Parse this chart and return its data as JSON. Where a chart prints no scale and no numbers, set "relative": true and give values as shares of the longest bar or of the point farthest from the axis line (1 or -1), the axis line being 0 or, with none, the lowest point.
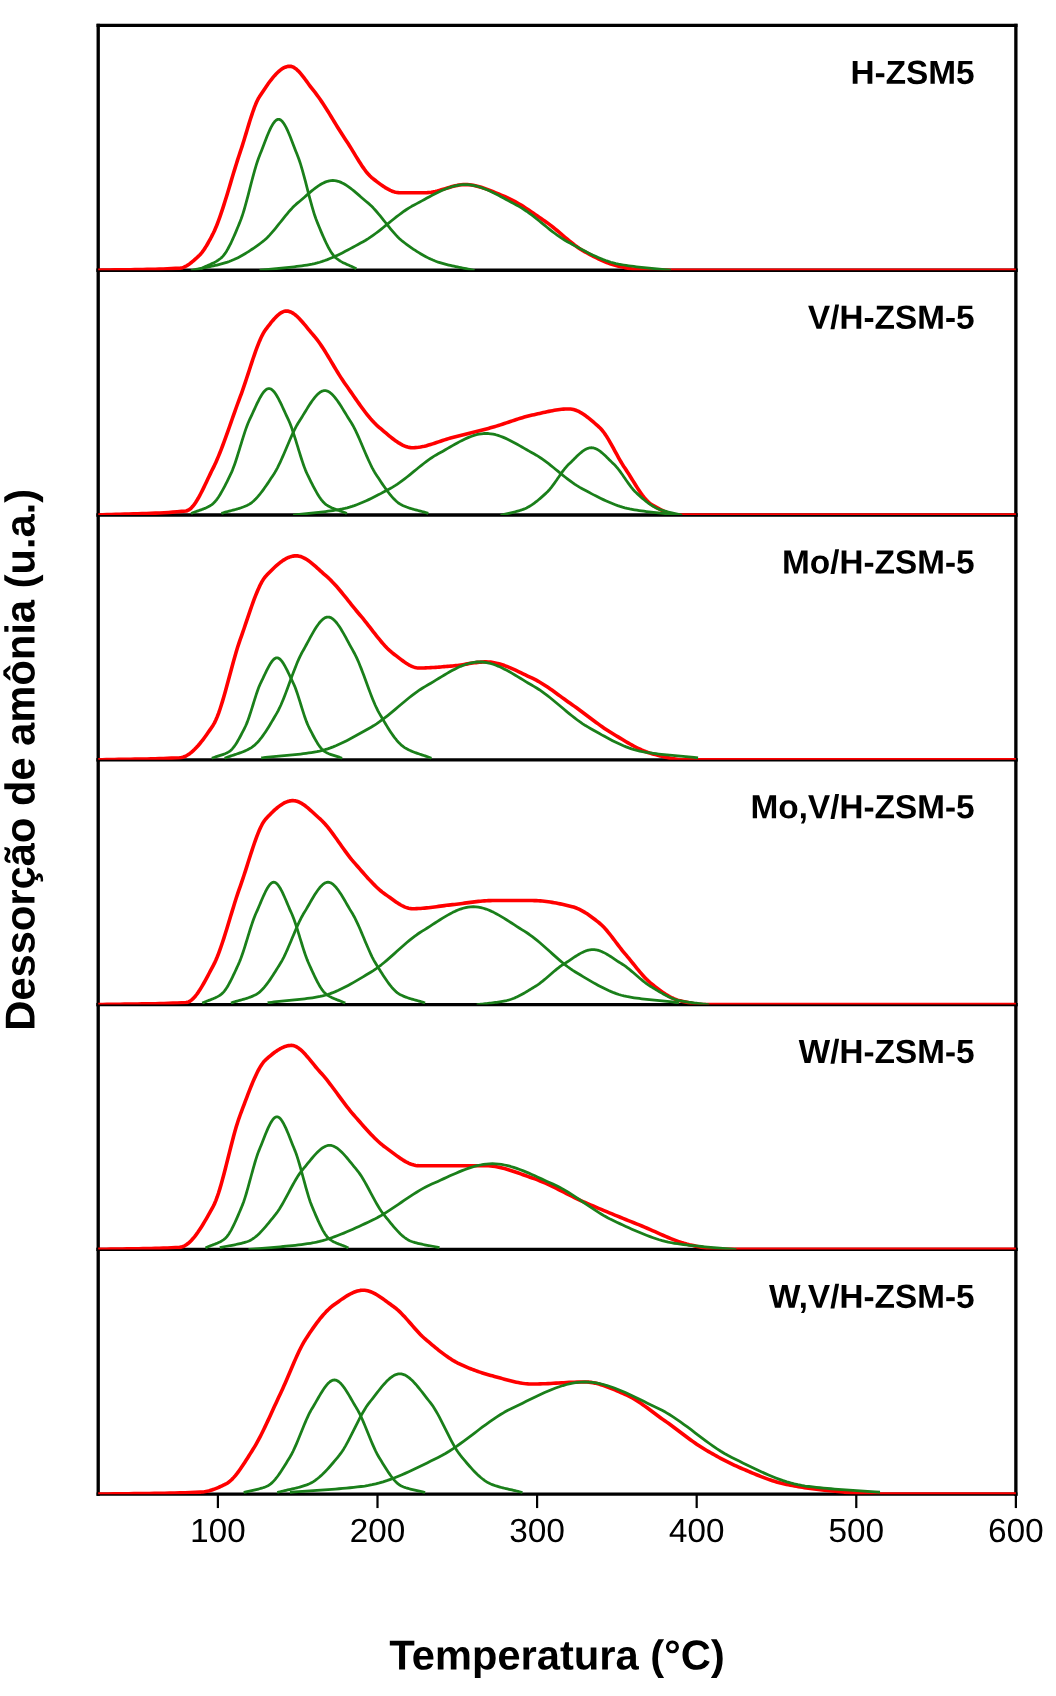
{
  "chart_data": [
    {
      "type": "line",
      "relative": true,
      "ylabel": "Dessorção de amônia (u.a.)",
      "annotations": [
        "H-ZSM5"
      ],
      "xlim": [
        25,
        600
      ],
      "tick_labels": false,
      "grid": false,
      "legend": false,
      "series": [
        {
          "color": "#1a7f1a",
          "x": [
            90,
            102,
            114,
            126,
            138,
            150,
            162,
            174,
            186
          ],
          "values": [
            0.01,
            0.06,
            0.24,
            0.56,
            0.74,
            0.56,
            0.24,
            0.06,
            0.01
          ]
        },
        {
          "color": "#1a7f1a",
          "x": [
            84,
            106,
            128,
            150,
            172,
            194,
            216,
            238,
            260
          ],
          "values": [
            0,
            0.04,
            0.14,
            0.33,
            0.44,
            0.33,
            0.14,
            0.04,
            0
          ]
        },
        {
          "color": "#1a7f1a",
          "x": [
            127,
            159,
            191,
            223,
            255,
            287,
            319,
            351,
            383
          ],
          "values": [
            0,
            0.03,
            0.14,
            0.32,
            0.42,
            0.32,
            0.14,
            0.03,
            0
          ]
        },
        {
          "color": "#ff0000",
          "x": [
            25,
            76,
            88,
            97,
            114,
            126,
            145,
            160,
            180,
            197,
            214,
            230,
            255,
            280,
            305,
            330,
            351,
            368,
            600
          ],
          "values": [
            0,
            0.01,
            0.07,
            0.18,
            0.58,
            0.85,
            1,
            0.88,
            0.64,
            0.45,
            0.38,
            0.38,
            0.42,
            0.36,
            0.24,
            0.09,
            0.02,
            0,
            0
          ]
        }
      ]
    },
    {
      "type": "line",
      "relative": true,
      "annotations": [
        "V/H-ZSM-5"
      ],
      "xlim": [
        25,
        600
      ],
      "tick_labels": false,
      "grid": false,
      "legend": false,
      "series": [
        {
          "color": "#1a7f1a",
          "x": [
            84,
            96,
            108,
            120,
            132,
            144,
            156,
            168,
            180
          ],
          "values": [
            0.01,
            0.05,
            0.2,
            0.47,
            0.62,
            0.47,
            0.2,
            0.05,
            0.01
          ]
        },
        {
          "color": "#1a7f1a",
          "x": [
            103,
            119,
            135,
            151,
            167,
            183,
            199,
            215,
            231
          ],
          "values": [
            0.01,
            0.05,
            0.2,
            0.46,
            0.61,
            0.46,
            0.2,
            0.05,
            0.01
          ]
        },
        {
          "color": "#1a7f1a",
          "x": [
            148,
            178,
            208,
            238,
            268,
            298,
            328,
            358,
            388
          ],
          "values": [
            0,
            0.03,
            0.13,
            0.3,
            0.4,
            0.3,
            0.13,
            0.03,
            0
          ]
        },
        {
          "color": "#1a7f1a",
          "x": [
            278,
            292,
            306,
            320,
            334,
            348,
            362,
            376,
            390
          ],
          "values": [
            0,
            0.03,
            0.11,
            0.25,
            0.33,
            0.25,
            0.11,
            0.03,
            0
          ]
        },
        {
          "color": "#ff0000",
          "x": [
            25,
            80,
            97,
            114,
            130,
            143,
            160,
            180,
            201,
            222,
            247,
            272,
            297,
            320,
            339,
            355,
            372,
            389,
            600
          ],
          "values": [
            0,
            0.02,
            0.23,
            0.58,
            0.91,
            1,
            0.88,
            0.64,
            0.43,
            0.33,
            0.38,
            0.43,
            0.49,
            0.52,
            0.43,
            0.23,
            0.05,
            0,
            0
          ]
        }
      ]
    },
    {
      "type": "line",
      "relative": true,
      "annotations": [
        "Mo/H-ZSM-5"
      ],
      "xlim": [
        25,
        600
      ],
      "tick_labels": false,
      "grid": false,
      "legend": false,
      "series": [
        {
          "color": "#1a7f1a",
          "x": [
            97,
            107,
            117,
            127,
            137,
            147,
            157,
            167,
            177
          ],
          "values": [
            0.01,
            0.04,
            0.16,
            0.38,
            0.5,
            0.38,
            0.16,
            0.04,
            0.01
          ]
        },
        {
          "color": "#1a7f1a",
          "x": [
            105,
            121,
            137,
            153,
            169,
            185,
            201,
            217,
            233
          ],
          "values": [
            0.01,
            0.06,
            0.23,
            0.53,
            0.7,
            0.53,
            0.23,
            0.06,
            0.01
          ]
        },
        {
          "color": "#1a7f1a",
          "x": [
            128,
            162,
            196,
            230,
            264,
            298,
            332,
            366,
            400
          ],
          "values": [
            0.01,
            0.04,
            0.16,
            0.36,
            0.48,
            0.36,
            0.16,
            0.04,
            0.01
          ]
        },
        {
          "color": "#ff0000",
          "x": [
            25,
            76,
            97,
            114,
            130,
            149,
            168,
            189,
            210,
            226,
            247,
            268,
            297,
            322,
            347,
            372,
            393,
            600
          ],
          "values": [
            0,
            0.01,
            0.17,
            0.59,
            0.9,
            1,
            0.9,
            0.71,
            0.52,
            0.45,
            0.46,
            0.48,
            0.4,
            0.27,
            0.13,
            0.03,
            0,
            0
          ]
        }
      ]
    },
    {
      "type": "line",
      "relative": true,
      "annotations": [
        "Mo,V/H-ZSM-5"
      ],
      "xlim": [
        25,
        600
      ],
      "tick_labels": false,
      "grid": false,
      "legend": false,
      "series": [
        {
          "color": "#1a7f1a",
          "x": [
            91,
            102,
            113,
            124,
            135,
            146,
            157,
            168,
            179
          ],
          "values": [
            0.01,
            0.05,
            0.2,
            0.45,
            0.6,
            0.45,
            0.2,
            0.05,
            0.01
          ]
        },
        {
          "color": "#1a7f1a",
          "x": [
            109,
            124,
            139,
            154,
            169,
            184,
            199,
            214,
            229
          ],
          "values": [
            0.01,
            0.05,
            0.2,
            0.45,
            0.6,
            0.45,
            0.2,
            0.05,
            0.01
          ]
        },
        {
          "color": "#1a7f1a",
          "x": [
            132,
            164,
            196,
            228,
            260,
            292,
            324,
            356,
            388
          ],
          "values": [
            0.01,
            0.04,
            0.16,
            0.36,
            0.48,
            0.36,
            0.16,
            0.04,
            0.01
          ]
        },
        {
          "color": "#1a7f1a",
          "x": [
            263,
            281,
            299,
            317,
            335,
            353,
            371,
            389,
            407
          ],
          "values": [
            0,
            0.02,
            0.09,
            0.2,
            0.27,
            0.2,
            0.09,
            0.02,
            0
          ]
        },
        {
          "color": "#ff0000",
          "x": [
            25,
            80,
            97,
            114,
            130,
            147,
            164,
            185,
            205,
            222,
            247,
            272,
            297,
            322,
            339,
            355,
            372,
            389,
            405,
            600
          ],
          "values": [
            0,
            0.01,
            0.19,
            0.58,
            0.91,
            1,
            0.91,
            0.7,
            0.54,
            0.47,
            0.49,
            0.51,
            0.51,
            0.48,
            0.4,
            0.25,
            0.1,
            0.02,
            0,
            0
          ]
        }
      ]
    },
    {
      "type": "line",
      "relative": true,
      "annotations": [
        "W/H-ZSM-5"
      ],
      "xlim": [
        25,
        600
      ],
      "tick_labels": false,
      "grid": false,
      "legend": false,
      "series": [
        {
          "color": "#1a7f1a",
          "x": [
            93,
            104,
            115,
            126,
            137,
            148,
            159,
            170,
            181
          ],
          "values": [
            0.01,
            0.05,
            0.21,
            0.49,
            0.65,
            0.49,
            0.21,
            0.05,
            0.01
          ]
        },
        {
          "color": "#1a7f1a",
          "x": [
            102,
            119,
            136,
            153,
            170,
            187,
            204,
            221,
            238
          ],
          "values": [
            0.01,
            0.04,
            0.17,
            0.39,
            0.51,
            0.39,
            0.17,
            0.04,
            0.01
          ]
        },
        {
          "color": "#1a7f1a",
          "x": [
            120,
            158,
            196,
            234,
            272,
            310,
            348,
            386,
            424
          ],
          "values": [
            0,
            0.03,
            0.14,
            0.32,
            0.42,
            0.32,
            0.14,
            0.03,
            0
          ]
        },
        {
          "color": "#ff0000",
          "x": [
            25,
            76,
            97,
            114,
            130,
            146,
            164,
            185,
            205,
            226,
            247,
            268,
            297,
            330,
            364,
            397,
            414,
            600
          ],
          "values": [
            0,
            0.01,
            0.21,
            0.66,
            0.93,
            1,
            0.87,
            0.66,
            0.5,
            0.41,
            0.41,
            0.41,
            0.35,
            0.23,
            0.12,
            0.02,
            0,
            0
          ]
        }
      ]
    },
    {
      "type": "line",
      "relative": true,
      "annotations": [
        "W,V/H-ZSM-5"
      ],
      "xlabel": "Temperatura (°C)",
      "xlim": [
        25,
        600
      ],
      "xticks": [
        100,
        200,
        300,
        400,
        500,
        600
      ],
      "tick_labels": "x",
      "grid": false,
      "legend": false,
      "series": [
        {
          "color": "#1a7f1a",
          "x": [
            117,
            131,
            145,
            159,
            173,
            187,
            201,
            215,
            229
          ],
          "values": [
            0.01,
            0.04,
            0.18,
            0.42,
            0.56,
            0.42,
            0.18,
            0.04,
            0.01
          ]
        },
        {
          "color": "#1a7f1a",
          "x": [
            138,
            157,
            176,
            195,
            214,
            233,
            252,
            271,
            290
          ],
          "values": [
            0.01,
            0.05,
            0.19,
            0.45,
            0.59,
            0.45,
            0.19,
            0.05,
            0.01
          ]
        },
        {
          "color": "#1a7f1a",
          "x": [
            146,
            192,
            238,
            284,
            330,
            376,
            422,
            468,
            514
          ],
          "values": [
            0.01,
            0.04,
            0.18,
            0.42,
            0.55,
            0.42,
            0.18,
            0.04,
            0.01
          ]
        },
        {
          "color": "#ff0000",
          "x": [
            25,
            89,
            105,
            122,
            139,
            155,
            173,
            191,
            210,
            230,
            251,
            272,
            297,
            330,
            355,
            380,
            405,
            430,
            455,
            480,
            514,
            600
          ],
          "values": [
            0,
            0.01,
            0.05,
            0.22,
            0.49,
            0.76,
            0.93,
            1,
            0.92,
            0.76,
            0.64,
            0.58,
            0.54,
            0.55,
            0.49,
            0.36,
            0.22,
            0.12,
            0.05,
            0.02,
            0,
            0
          ]
        }
      ]
    }
  ]
}
